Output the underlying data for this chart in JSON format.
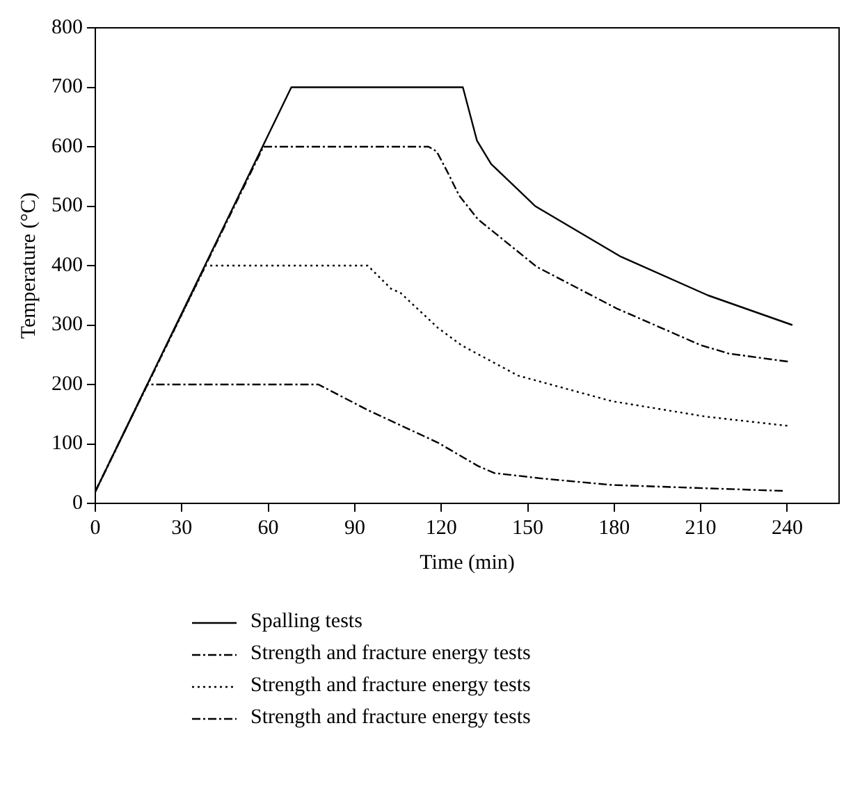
{
  "chart_data": {
    "type": "line",
    "xlabel": "Time (min)",
    "ylabel": "Temperature (°C)",
    "xlim": [
      0,
      258
    ],
    "xticks": [
      0,
      30,
      60,
      90,
      120,
      150,
      180,
      210,
      240
    ],
    "ylim": [
      0,
      800
    ],
    "yticks": [
      0,
      100,
      200,
      300,
      400,
      500,
      600,
      700,
      800
    ],
    "grid": false,
    "legend": "bottom",
    "marker": "none",
    "series": [
      {
        "name": "Spalling tests",
        "color": "#000000",
        "line_style": "solid",
        "x": [
          0,
          68,
          127.5,
          132.4,
          137.3,
          152.6,
          181.9,
          212.5,
          241.8
        ],
        "values": [
          20,
          700,
          700,
          610,
          571,
          500,
          416,
          350,
          300
        ]
      },
      {
        "name": "Strength and fracture energy tests",
        "color": "#000000",
        "line_style": "dashed",
        "x": [
          0,
          58.3,
          115.6,
          118.4,
          122.1,
          126.2,
          132.7,
          153.1,
          180.8,
          210.1,
          219.8,
          241
        ],
        "values": [
          20,
          600,
          600,
          592,
          558,
          518,
          478,
          398,
          328,
          266,
          252,
          238
        ]
      },
      {
        "name": "Strength and fracture energy tests",
        "color": "#000000",
        "line_style": "dotted",
        "x": [
          0,
          38.3,
          94.5,
          102.6,
          105.9,
          118.9,
          127,
          146.6,
          179.1,
          211.7,
          241
        ],
        "values": [
          20,
          400,
          400,
          361,
          354,
          295,
          266,
          215,
          172,
          146,
          130
        ]
      },
      {
        "name": "Strength and fracture energy tests",
        "color": "#000000",
        "line_style": "dashed",
        "x": [
          0,
          18,
          77.4,
          94.5,
          118.9,
          132.7,
          138.4,
          154.7,
          179.1,
          208.4,
          238.6
        ],
        "values": [
          20,
          200,
          200,
          157,
          102,
          63,
          51,
          42,
          31,
          26,
          21
        ]
      }
    ]
  }
}
